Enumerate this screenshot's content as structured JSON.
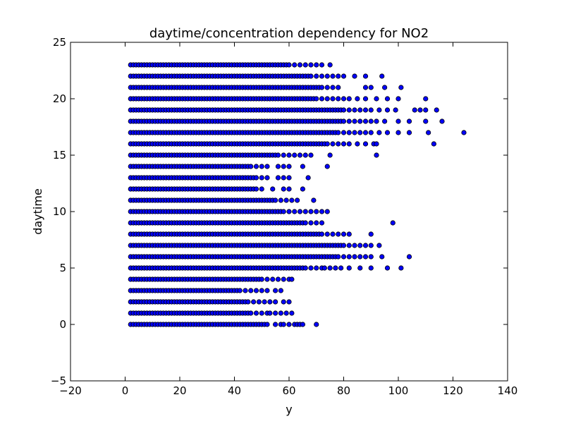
{
  "chart_data": {
    "type": "scatter",
    "title": "daytime/concentration dependency for NO2",
    "xlabel": "y",
    "ylabel": "daytime",
    "xlim": [
      -20,
      140
    ],
    "ylim": [
      -5,
      25
    ],
    "x_ticks": [
      "−20",
      "0",
      "20",
      "40",
      "60",
      "80",
      "100",
      "120",
      "140"
    ],
    "y_ticks": [
      "−5",
      "0",
      "5",
      "10",
      "15",
      "20",
      "25"
    ],
    "grid": false,
    "legend": "none",
    "marker_color": "#0000ff",
    "marker_edge": "#000000",
    "rows": [
      {
        "y": 0,
        "dense_max": 52,
        "extra": [
          55,
          57,
          58,
          60,
          62,
          63,
          64,
          65,
          70
        ]
      },
      {
        "y": 1,
        "dense_max": 46,
        "extra": [
          48,
          50,
          52,
          53,
          55,
          57,
          59,
          61
        ]
      },
      {
        "y": 2,
        "dense_max": 45,
        "extra": [
          47,
          49,
          51,
          53,
          55,
          58,
          60
        ]
      },
      {
        "y": 3,
        "dense_max": 42,
        "extra": [
          44,
          46,
          48,
          50,
          52,
          55,
          57
        ]
      },
      {
        "y": 4,
        "dense_max": 50,
        "extra": [
          52,
          54,
          56,
          58,
          60,
          61
        ]
      },
      {
        "y": 5,
        "dense_max": 66,
        "extra": [
          68,
          70,
          72,
          73,
          75,
          77,
          79,
          82,
          86,
          90,
          96,
          101
        ]
      },
      {
        "y": 6,
        "dense_max": 78,
        "extra": [
          80,
          82,
          84,
          86,
          88,
          90,
          94,
          104
        ]
      },
      {
        "y": 7,
        "dense_max": 80,
        "extra": [
          82,
          84,
          86,
          88,
          90,
          93
        ]
      },
      {
        "y": 8,
        "dense_max": 72,
        "extra": [
          74,
          76,
          78,
          80,
          82,
          90
        ]
      },
      {
        "y": 9,
        "dense_max": 66,
        "extra": [
          68,
          70,
          72,
          98
        ]
      },
      {
        "y": 10,
        "dense_max": 58,
        "extra": [
          60,
          62,
          64,
          66,
          68,
          70,
          72,
          74
        ]
      },
      {
        "y": 11,
        "dense_max": 55,
        "extra": [
          57,
          59,
          61,
          63,
          69
        ]
      },
      {
        "y": 12,
        "dense_max": 48,
        "extra": [
          50,
          54,
          58,
          60,
          65
        ]
      },
      {
        "y": 13,
        "dense_max": 48,
        "extra": [
          50,
          52,
          56,
          58,
          60,
          67
        ]
      },
      {
        "y": 14,
        "dense_max": 46,
        "extra": [
          48,
          50,
          52,
          56,
          58,
          60,
          65,
          74
        ]
      },
      {
        "y": 15,
        "dense_max": 56,
        "extra": [
          58,
          60,
          62,
          64,
          66,
          68,
          75,
          92
        ]
      },
      {
        "y": 16,
        "dense_max": 74,
        "extra": [
          76,
          78,
          80,
          82,
          85,
          88,
          91,
          92,
          113
        ]
      },
      {
        "y": 17,
        "dense_max": 78,
        "extra": [
          80,
          82,
          84,
          86,
          88,
          90,
          93,
          96,
          100,
          104,
          111,
          124
        ]
      },
      {
        "y": 18,
        "dense_max": 80,
        "extra": [
          82,
          84,
          86,
          88,
          90,
          92,
          95,
          100,
          104,
          110,
          116
        ]
      },
      {
        "y": 19,
        "dense_max": 80,
        "extra": [
          82,
          84,
          86,
          88,
          90,
          93,
          96,
          99,
          106,
          108,
          110,
          114
        ]
      },
      {
        "y": 20,
        "dense_max": 70,
        "extra": [
          72,
          74,
          76,
          78,
          80,
          82,
          85,
          88,
          92,
          96,
          100,
          110
        ]
      },
      {
        "y": 21,
        "dense_max": 72,
        "extra": [
          74,
          76,
          78,
          88,
          90,
          95,
          101
        ]
      },
      {
        "y": 22,
        "dense_max": 68,
        "extra": [
          70,
          72,
          74,
          76,
          78,
          80,
          84,
          88,
          94
        ]
      },
      {
        "y": 23,
        "dense_max": 60,
        "extra": [
          62,
          64,
          66,
          68,
          70,
          72,
          75
        ]
      }
    ],
    "dense_min": 2,
    "dense_step": 1
  }
}
